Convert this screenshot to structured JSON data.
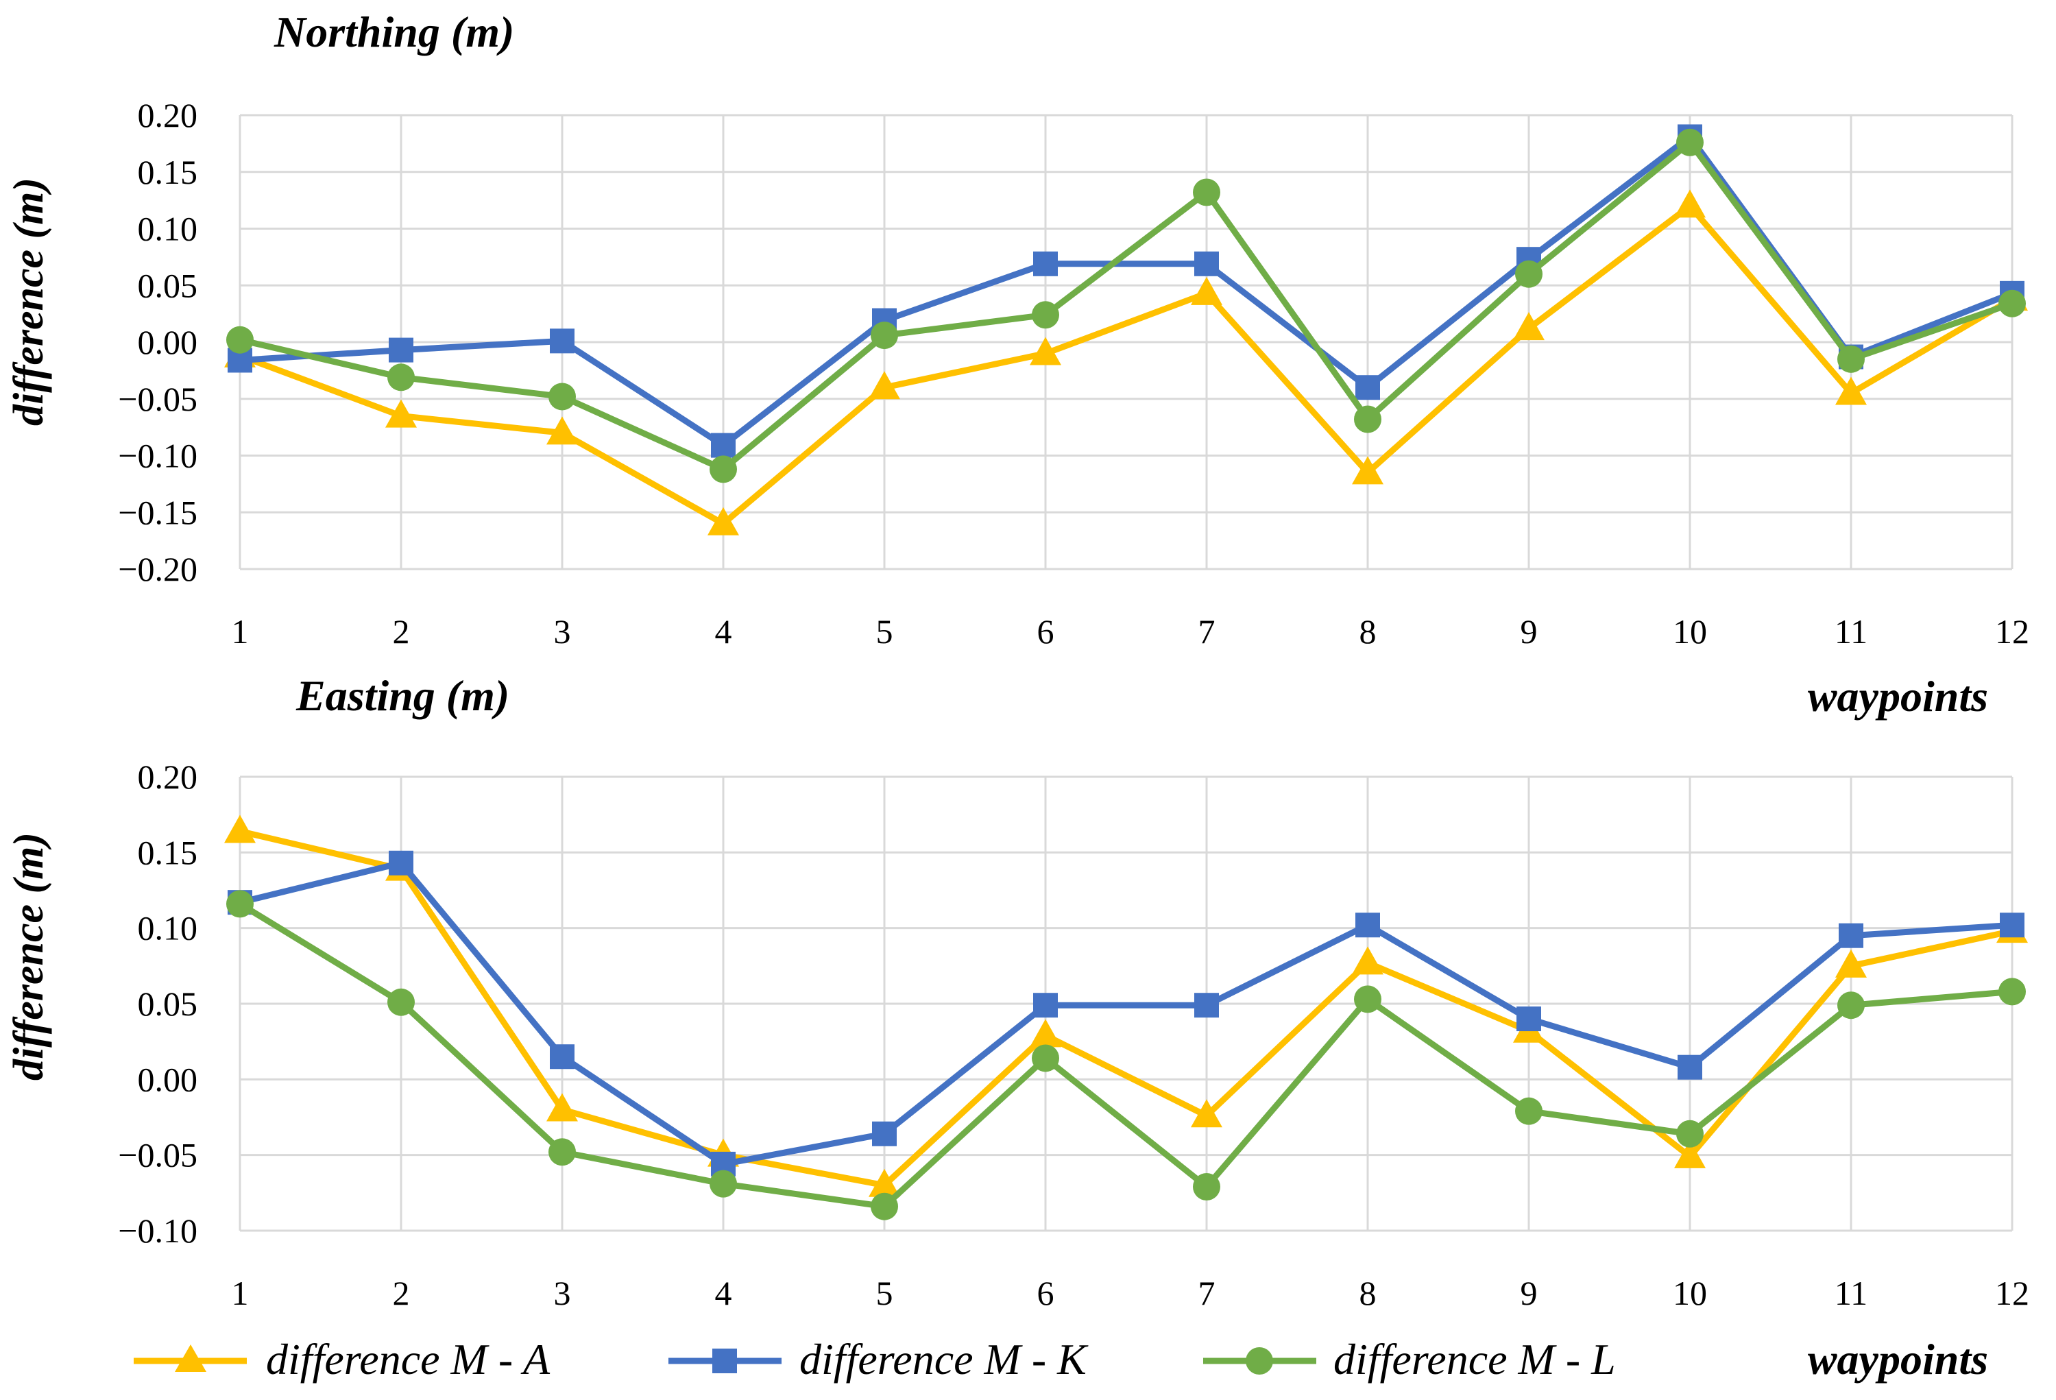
{
  "chart_data": [
    {
      "type": "line",
      "title": "Northing (m)",
      "xlabel": "waypoints",
      "ylabel": "difference (m)",
      "x": [
        1,
        2,
        3,
        4,
        5,
        6,
        7,
        8,
        9,
        10,
        11,
        12
      ],
      "ylim": [
        -0.2,
        0.2
      ],
      "yticks": [
        "0.20",
        "0.15",
        "0.10",
        "0.05",
        "0.00",
        "−0.05",
        "−0.10",
        "−0.15",
        "−0.20"
      ],
      "ytick_values": [
        0.2,
        0.15,
        0.1,
        0.05,
        0.0,
        -0.05,
        -0.1,
        -0.15,
        -0.2
      ],
      "xticks": [
        "1",
        "2",
        "3",
        "4",
        "5",
        "6",
        "7",
        "8",
        "9",
        "10",
        "11",
        "12"
      ],
      "grid": true,
      "series": [
        {
          "name": "difference M - A",
          "values": [
            -0.012,
            -0.065,
            -0.08,
            -0.16,
            -0.04,
            -0.01,
            0.043,
            -0.115,
            0.012,
            0.12,
            -0.045,
            0.038
          ]
        },
        {
          "name": "difference M - K",
          "values": [
            -0.016,
            -0.007,
            0.001,
            -0.091,
            0.019,
            0.069,
            0.069,
            -0.04,
            0.073,
            0.181,
            -0.013,
            0.043
          ]
        },
        {
          "name": "difference M - L",
          "values": [
            0.002,
            -0.031,
            -0.048,
            -0.112,
            0.006,
            0.024,
            0.132,
            -0.068,
            0.06,
            0.176,
            -0.015,
            0.034
          ]
        }
      ]
    },
    {
      "type": "line",
      "title": "Easting (m)",
      "xlabel": "waypoints",
      "ylabel": "difference (m)",
      "x": [
        1,
        2,
        3,
        4,
        5,
        6,
        7,
        8,
        9,
        10,
        11,
        12
      ],
      "ylim": [
        -0.1,
        0.2
      ],
      "yticks": [
        "0.20",
        "0.15",
        "0.10",
        "0.05",
        "0.00",
        "−0.05",
        "−0.10"
      ],
      "ytick_values": [
        0.2,
        0.15,
        0.1,
        0.05,
        0.0,
        -0.05,
        -0.1
      ],
      "xticks": [
        "1",
        "2",
        "3",
        "4",
        "5",
        "6",
        "7",
        "8",
        "9",
        "10",
        "11",
        "12"
      ],
      "grid": true,
      "series": [
        {
          "name": "difference M - A",
          "values": [
            0.164,
            0.139,
            -0.02,
            -0.05,
            -0.07,
            0.029,
            -0.024,
            0.077,
            0.032,
            -0.051,
            0.075,
            0.098
          ]
        },
        {
          "name": "difference M - K",
          "values": [
            0.117,
            0.143,
            0.015,
            -0.056,
            -0.036,
            0.049,
            0.049,
            0.102,
            0.04,
            0.008,
            0.095,
            0.102
          ]
        },
        {
          "name": "difference M - L",
          "values": [
            0.116,
            0.051,
            -0.048,
            -0.069,
            -0.084,
            0.014,
            -0.071,
            0.053,
            -0.021,
            -0.036,
            0.049,
            0.058
          ]
        }
      ]
    }
  ],
  "legend": {
    "items": [
      "difference M - A",
      "difference M - K",
      "difference M - L"
    ],
    "position": "bottom",
    "xlabel": "waypoints"
  },
  "colors": {
    "series": [
      "#FFC000",
      "#4472C4",
      "#70AD47"
    ],
    "grid": "#D9D9D9",
    "text": "#000000"
  },
  "markers": [
    "triangle",
    "square",
    "circle"
  ]
}
